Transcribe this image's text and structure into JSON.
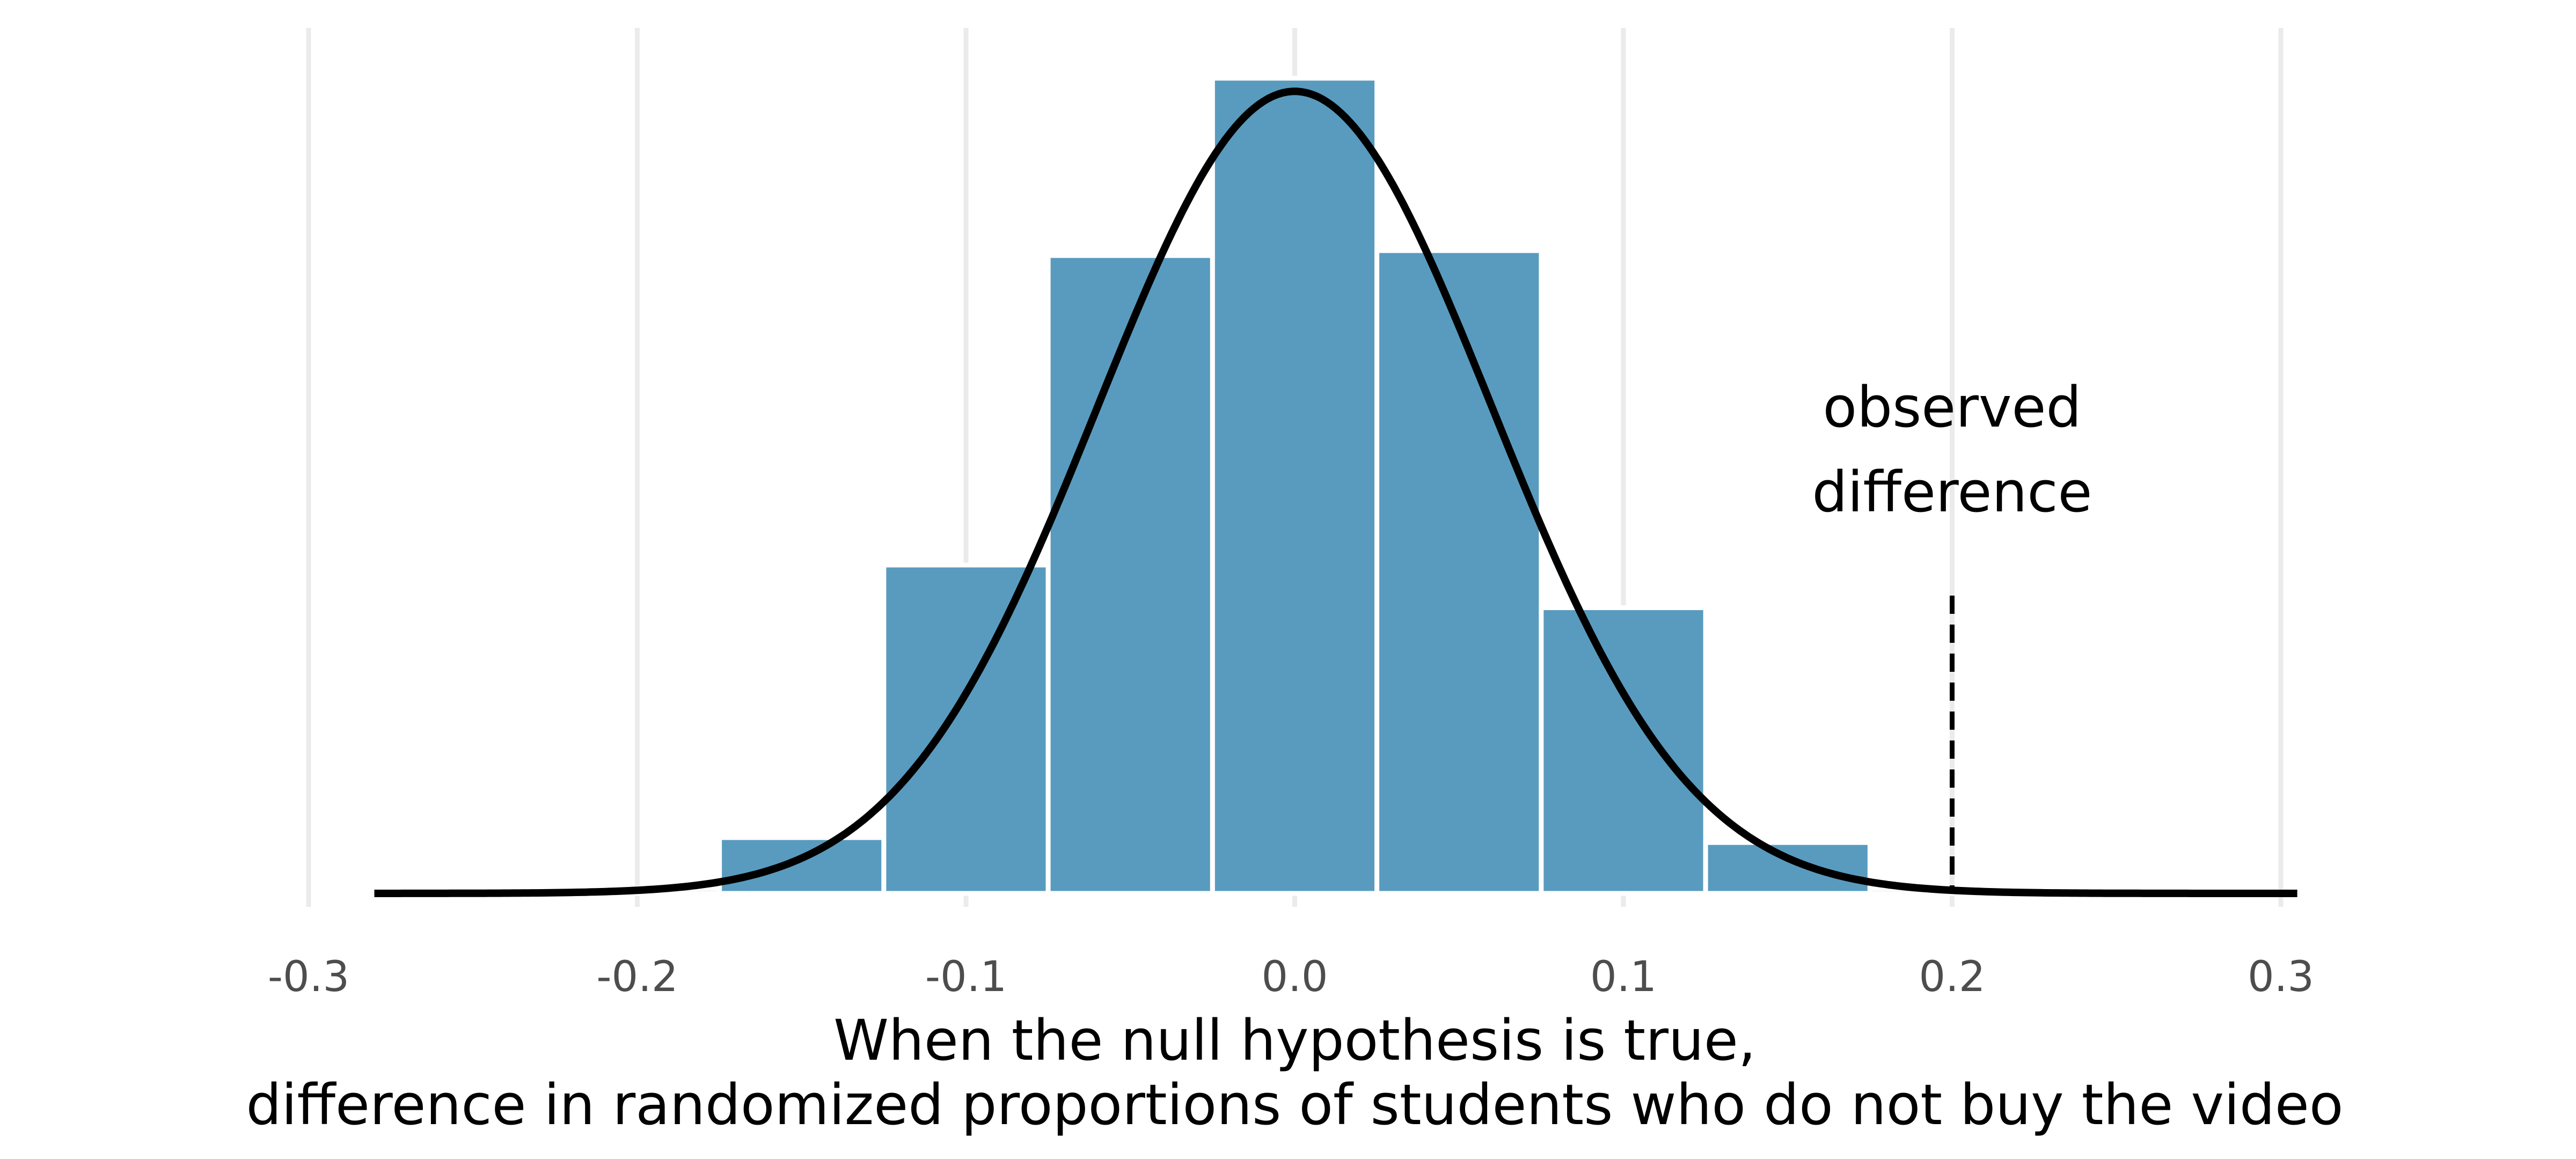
{
  "chart_data": {
    "type": "bar",
    "title": "",
    "xlabel": "When the null hypothesis is true,\ndifference in randomized proportions of students who do not buy the video",
    "ylabel": "",
    "xlim": [
      -0.3,
      0.3
    ],
    "ylim": [
      0,
      1
    ],
    "grid": "vertical-major",
    "x_ticks": [
      "-0.3",
      "-0.2",
      "-0.1",
      "0.0",
      "0.1",
      "0.2",
      "0.3"
    ],
    "bin_width": 0.05,
    "bins": [
      {
        "center": -0.2,
        "height": 0.006
      },
      {
        "center": -0.15,
        "height": 0.068
      },
      {
        "center": -0.1,
        "height": 0.4
      },
      {
        "center": -0.05,
        "height": 0.777
      },
      {
        "center": 0.0,
        "height": 0.993
      },
      {
        "center": 0.05,
        "height": 0.783
      },
      {
        "center": 0.1,
        "height": 0.348
      },
      {
        "center": 0.15,
        "height": 0.062
      },
      {
        "center": 0.2,
        "height": 0.006
      }
    ],
    "curve": {
      "type": "normal",
      "mean": 0.0,
      "sd": 0.06,
      "x_range": [
        -0.28,
        0.305
      ],
      "peak": 0.977
    },
    "reference_line": {
      "x": 0.2,
      "style": "dashed",
      "label": "observed\ndifference"
    },
    "colors": {
      "bars": "#589bbf",
      "bar_outline": "#ffffff",
      "curve": "#000000",
      "grid": "#ebebeb",
      "reference_line": "#000000"
    }
  }
}
